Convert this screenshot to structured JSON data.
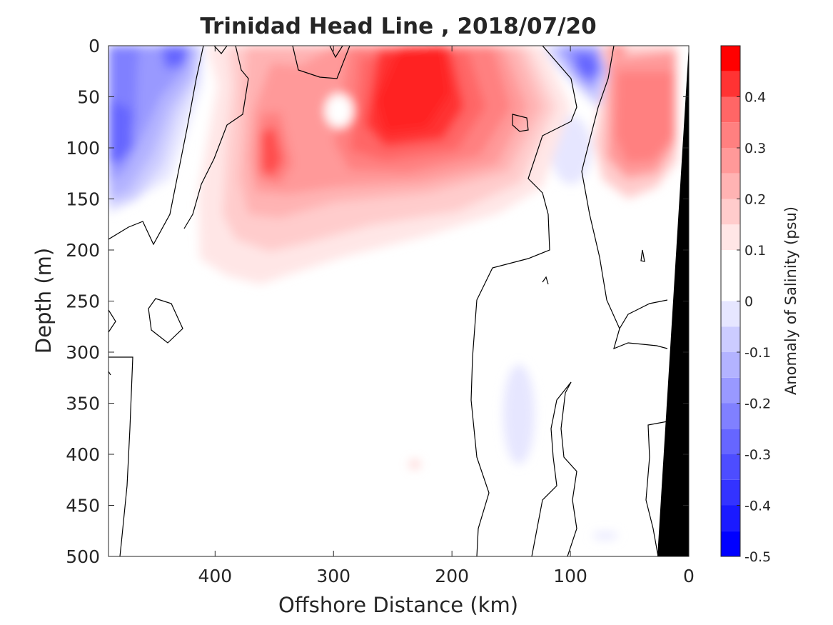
{
  "chart_data": {
    "type": "heatmap",
    "subtype": "filled-contour section",
    "title": "Trinidad Head Line , 2018/07/20",
    "xlabel": "Offshore Distance (km)",
    "ylabel": "Depth (m)",
    "colorbar_label": "Anomaly of Salinity (psu)",
    "x_direction": "reversed",
    "y_direction": "reversed",
    "xlim": [
      0,
      490
    ],
    "ylim": [
      0,
      500
    ],
    "x_ticks": [
      400,
      300,
      200,
      100,
      0
    ],
    "y_ticks": [
      0,
      50,
      100,
      150,
      200,
      250,
      300,
      350,
      400,
      450,
      500
    ],
    "colorbar_range": [
      -0.5,
      0.5
    ],
    "colorbar_ticks": [
      -0.5,
      -0.4,
      -0.3,
      -0.2,
      -0.1,
      0,
      0.1,
      0.2,
      0.3,
      0.4
    ],
    "contour_interval": 0.05,
    "grid": false,
    "levels": [
      {
        "from": -0.5,
        "to": -0.45,
        "color": "#0000ff"
      },
      {
        "from": -0.45,
        "to": -0.4,
        "color": "#1a1aff"
      },
      {
        "from": -0.4,
        "to": -0.35,
        "color": "#3333ff"
      },
      {
        "from": -0.35,
        "to": -0.3,
        "color": "#4d4dff"
      },
      {
        "from": -0.3,
        "to": -0.25,
        "color": "#6666ff"
      },
      {
        "from": -0.25,
        "to": -0.2,
        "color": "#8080ff"
      },
      {
        "from": -0.2,
        "to": -0.15,
        "color": "#9999ff"
      },
      {
        "from": -0.15,
        "to": -0.1,
        "color": "#b3b3ff"
      },
      {
        "from": -0.1,
        "to": -0.05,
        "color": "#ccccff"
      },
      {
        "from": -0.05,
        "to": 0,
        "color": "#e6e6ff"
      },
      {
        "from": 0,
        "to": 0.05,
        "color": "#ffffff"
      },
      {
        "from": 0.05,
        "to": 0.1,
        "color": "#ffffff"
      },
      {
        "from": 0.1,
        "to": 0.15,
        "color": "#ffe6e6"
      },
      {
        "from": 0.15,
        "to": 0.2,
        "color": "#ffcccc"
      },
      {
        "from": 0.2,
        "to": 0.25,
        "color": "#ffb3b3"
      },
      {
        "from": 0.25,
        "to": 0.3,
        "color": "#ff9999"
      },
      {
        "from": 0.3,
        "to": 0.35,
        "color": "#ff8080"
      },
      {
        "from": 0.35,
        "to": 0.4,
        "color": "#ff6666"
      },
      {
        "from": 0.4,
        "to": 0.45,
        "color": "#ff3333"
      },
      {
        "from": 0.45,
        "to": 0.5,
        "color": "#ff0000"
      }
    ],
    "features": [
      {
        "kind": "anomaly-core",
        "sign": "negative",
        "center_km": 470,
        "center_depth_m": 80,
        "peak": -0.25
      },
      {
        "kind": "anomaly-core",
        "sign": "negative",
        "center_km": 440,
        "center_depth_m": 10,
        "peak": -0.25
      },
      {
        "kind": "anomaly-core",
        "sign": "negative",
        "center_km": 90,
        "center_depth_m": 20,
        "peak": -0.25
      },
      {
        "kind": "anomaly-core",
        "sign": "negative",
        "center_km": 130,
        "center_depth_m": 370,
        "peak": -0.05
      },
      {
        "kind": "anomaly-core",
        "sign": "positive",
        "center_km": 240,
        "center_depth_m": 70,
        "peak": 0.45
      },
      {
        "kind": "anomaly-core",
        "sign": "positive",
        "center_km": 350,
        "center_depth_m": 105,
        "peak": 0.35
      },
      {
        "kind": "anomaly-core",
        "sign": "positive",
        "center_km": 50,
        "center_depth_m": 70,
        "peak": 0.3
      }
    ],
    "bathymetry": {
      "color": "#000000",
      "shelf_edge_km_at_500m": 25
    }
  }
}
